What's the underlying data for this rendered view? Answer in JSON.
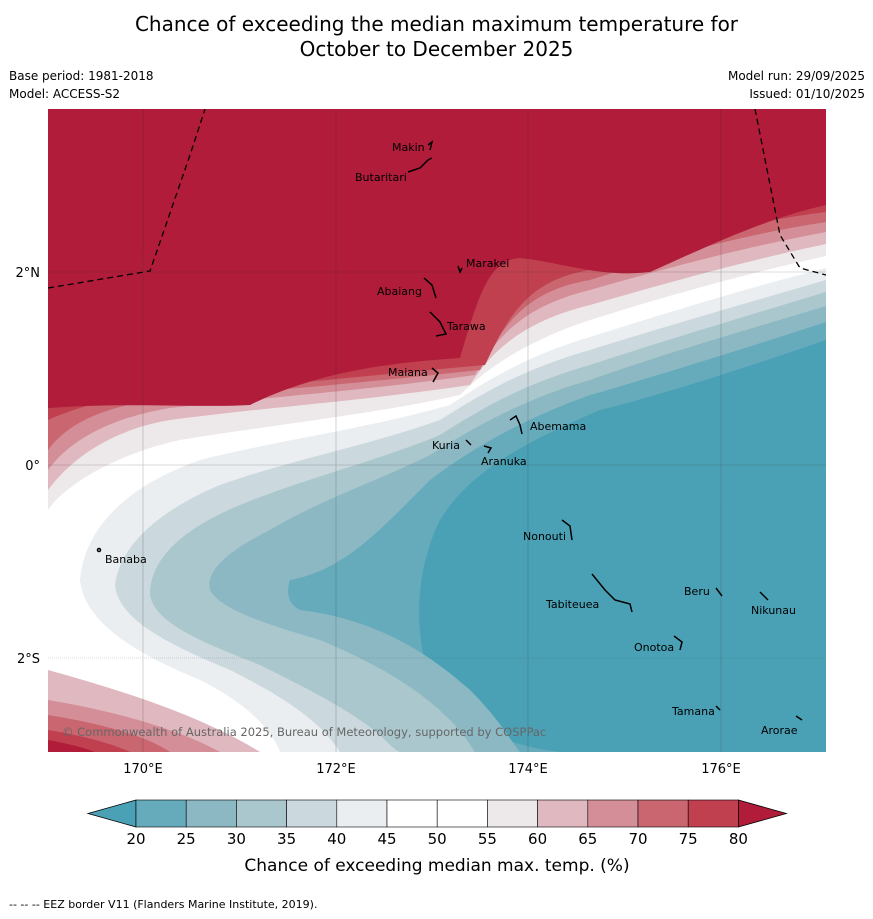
{
  "title": {
    "line1": "Chance of exceeding the median maximum temperature for",
    "line2": "October to December 2025"
  },
  "meta_left": {
    "base_period": "Base period: 1981-2018",
    "model": "Model: ACCESS-S2"
  },
  "meta_right": {
    "model_run": "Model run: 29/09/2025",
    "issued": "Issued: 01/10/2025"
  },
  "map": {
    "lat_labels": [
      "2°N",
      "0°",
      "2°S"
    ],
    "lon_labels": [
      "170°E",
      "172°E",
      "174°E",
      "176°E"
    ],
    "copyright": "© Commonwealth of Australia 2025, Bureau of Meteorology, supported by COSPPac",
    "islands": [
      "Makin",
      "Butaritari",
      "Marakei",
      "Abaiang",
      "Tarawa",
      "Maiana",
      "Abemama",
      "Kuria",
      "Aranuka",
      "Banaba",
      "Nonouti",
      "Tabiteuea",
      "Beru",
      "Nikunau",
      "Onotoa",
      "Tamana",
      "Arorae"
    ]
  },
  "colorbar": {
    "ticks": [
      "20",
      "25",
      "30",
      "35",
      "40",
      "45",
      "50",
      "55",
      "60",
      "65",
      "70",
      "75",
      "80"
    ],
    "label": "Chance of exceeding median max. temp. (%)",
    "low_color": "#4aa1b5",
    "high_color": "#b01c39",
    "colors": [
      "#66abbb",
      "#8cb8c4",
      "#a9c7cd",
      "#cbd8dd",
      "#eaeef1",
      "#ffffff",
      "#ffffff",
      "#ede8ea",
      "#e0b8bf",
      "#d48e98",
      "#c9666f",
      "#c14050"
    ]
  },
  "footer": {
    "eez_note": "--  --  -- EEZ border V11 (Flanders Marine Institute, 2019)."
  }
}
